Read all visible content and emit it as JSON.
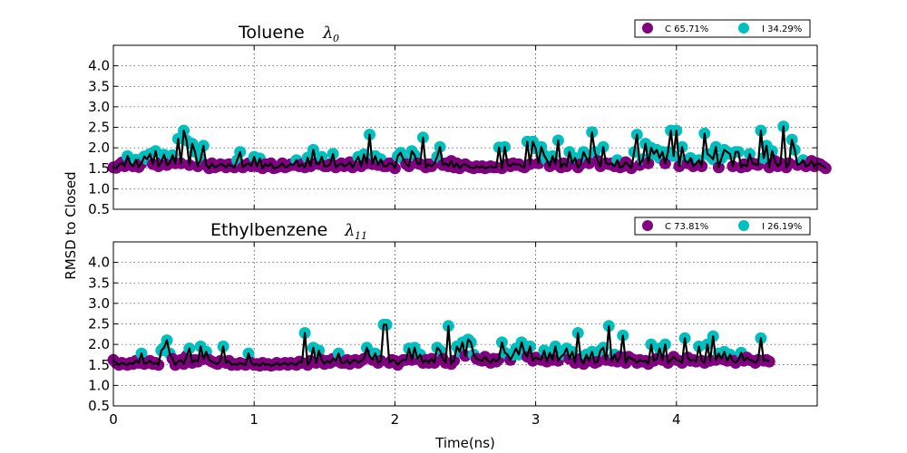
{
  "figure": {
    "ylabel": "RMSD to Closed",
    "xlabel": "Time(ns)"
  },
  "chart_data": [
    {
      "type": "scatter",
      "title": "Toluene",
      "title_symbol": "λ",
      "title_subscript": "0",
      "xlim": [
        0,
        5
      ],
      "ylim": [
        0.5,
        4.5
      ],
      "yticks": [
        "0.5",
        "1.0",
        "1.5",
        "2.0",
        "2.5",
        "3.0",
        "3.5",
        "4.0"
      ],
      "xticks": [],
      "grid": true,
      "legend_position": "top-right",
      "legend": [
        {
          "label": "C 65.71%",
          "color": "#800080"
        },
        {
          "label": "I 34.29%",
          "color": "#00BFBF"
        }
      ],
      "line_color": "#000000",
      "threshold": 1.7,
      "x_step": 0.02,
      "y": [
        1.52,
        1.51,
        1.58,
        1.64,
        1.55,
        1.8,
        1.62,
        1.55,
        1.71,
        1.53,
        1.62,
        1.79,
        1.72,
        1.85,
        1.6,
        1.92,
        1.55,
        1.65,
        1.83,
        1.58,
        1.62,
        1.82,
        1.62,
        2.22,
        1.62,
        2.42,
        2.18,
        1.58,
        2.1,
        1.9,
        1.55,
        1.72,
        2.05,
        1.58,
        1.5,
        1.62,
        1.52,
        1.55,
        1.6,
        1.58,
        1.52,
        1.6,
        1.55,
        1.52,
        1.7,
        1.9,
        1.52,
        1.58,
        1.62,
        1.55,
        1.78,
        1.55,
        1.74,
        1.5,
        1.6,
        1.55,
        1.62,
        1.5,
        1.52,
        1.55,
        1.62,
        1.52,
        1.55,
        1.6,
        1.58,
        1.7,
        1.55,
        1.6,
        1.52,
        1.76,
        1.55,
        1.95,
        1.62,
        1.6,
        1.78,
        1.55,
        1.55,
        1.6,
        1.85,
        1.52,
        1.58,
        1.62,
        1.55,
        1.58,
        1.65,
        1.52,
        1.65,
        1.78,
        1.55,
        1.84,
        1.62,
        2.32,
        1.6,
        1.8,
        1.58,
        1.72,
        1.55,
        1.55,
        1.62,
        1.62,
        1.5,
        1.8,
        1.88,
        1.72,
        1.6,
        1.55,
        1.92,
        1.82,
        1.62,
        1.6,
        2.25,
        1.52,
        1.6,
        1.55,
        1.62,
        1.78,
        2.02,
        1.58,
        1.62,
        1.55,
        1.68,
        1.52,
        1.62,
        1.5,
        1.58,
        1.6,
        1.55,
        1.52,
        1.5,
        1.55,
        1.52,
        1.55,
        1.5,
        1.52,
        1.55,
        1.52,
        1.52,
        2.01,
        1.5,
        2.02,
        1.6,
        1.55,
        1.62,
        1.58,
        1.6,
        1.55,
        1.52,
        2.15,
        1.6,
        2.15,
        1.98,
        1.62,
        2.02,
        1.82,
        1.7,
        1.55,
        1.8,
        1.6,
        2.18,
        1.52,
        1.62,
        1.55,
        1.9,
        1.62,
        1.75,
        1.52,
        1.6,
        1.9,
        1.75,
        1.62,
        2.38,
        1.9,
        1.68,
        1.55,
        2.02,
        1.62,
        1.6,
        1.62,
        1.55,
        1.7,
        1.52,
        1.55,
        1.65,
        1.58,
        1.5,
        1.9,
        2.32,
        1.58,
        1.72,
        2.1,
        1.62,
        2.0,
        1.85,
        1.95,
        1.75,
        1.9,
        1.62,
        1.9,
        2.42,
        1.8,
        2.42,
        1.55,
        2.02,
        1.7,
        1.62,
        1.75,
        1.55,
        1.62,
        1.7,
        1.55,
        2.35,
        1.85,
        1.8,
        1.72,
        2.02,
        1.52,
        1.75,
        1.95,
        1.9,
        1.85,
        1.55,
        1.9,
        1.9,
        1.52,
        1.6,
        1.55,
        1.85,
        1.62,
        1.6,
        1.58,
        2.42,
        1.75,
        2.05,
        1.52,
        1.92,
        1.68,
        1.55,
        1.62,
        2.52,
        1.52,
        1.62,
        2.2,
        1.95,
        1.58,
        1.62,
        1.7,
        1.55,
        1.58,
        1.68,
        1.55,
        1.62,
        1.6,
        1.55,
        1.5
      ]
    },
    {
      "type": "scatter",
      "title": "Ethylbenzene",
      "title_symbol": "λ",
      "title_subscript": "11",
      "xlim": [
        0,
        5
      ],
      "ylim": [
        0.5,
        4.5
      ],
      "yticks": [
        "0.5",
        "1.0",
        "1.5",
        "2.0",
        "2.5",
        "3.0",
        "3.5",
        "4.0"
      ],
      "xticks": [
        "0",
        "1",
        "2",
        "3",
        "4"
      ],
      "grid": true,
      "legend_position": "top-right",
      "legend": [
        {
          "label": "C 73.81%",
          "color": "#800080"
        },
        {
          "label": "I 26.19%",
          "color": "#00BFBF"
        }
      ],
      "line_color": "#000000",
      "threshold": 1.75,
      "x_step": 0.02,
      "y": [
        1.62,
        1.55,
        1.5,
        1.55,
        1.52,
        1.5,
        1.55,
        1.52,
        1.6,
        1.55,
        1.78,
        1.52,
        1.55,
        1.6,
        1.52,
        1.55,
        1.5,
        1.85,
        1.92,
        2.1,
        1.78,
        1.65,
        1.5,
        1.58,
        1.62,
        1.52,
        1.72,
        1.9,
        1.55,
        1.62,
        1.58,
        1.95,
        1.65,
        1.82,
        1.62,
        1.58,
        1.55,
        1.52,
        1.6,
        1.95,
        1.55,
        1.6,
        1.5,
        1.52,
        1.5,
        1.55,
        1.52,
        1.5,
        1.78,
        1.55,
        1.5,
        1.52,
        1.48,
        1.55,
        1.5,
        1.52,
        1.48,
        1.5,
        1.55,
        1.5,
        1.52,
        1.55,
        1.5,
        1.55,
        1.52,
        1.5,
        1.58,
        1.55,
        2.28,
        1.5,
        1.6,
        1.92,
        1.55,
        1.85,
        1.62,
        1.52,
        1.6,
        1.55,
        1.65,
        1.6,
        1.78,
        1.55,
        1.55,
        1.62,
        1.52,
        1.6,
        1.62,
        1.55,
        1.6,
        1.65,
        1.92,
        1.72,
        1.62,
        1.78,
        1.55,
        1.6,
        2.48,
        2.48,
        1.55,
        1.62,
        1.6,
        1.5,
        1.58,
        1.62,
        1.62,
        1.9,
        1.62,
        1.92,
        1.65,
        1.75,
        1.55,
        1.62,
        1.55,
        1.65,
        1.55,
        1.92,
        1.85,
        1.65,
        1.55,
        2.45,
        1.52,
        1.6,
        1.95,
        1.82,
        2.05,
        1.72,
        2.12,
        2.05,
        1.75,
        1.65,
        1.62,
        1.6,
        1.7,
        1.6,
        1.55,
        1.65,
        1.58,
        1.65,
        2.05,
        1.8,
        1.75,
        1.62,
        1.75,
        1.9,
        1.75,
        2.05,
        1.8,
        1.7,
        1.95,
        1.6,
        1.68,
        1.65,
        1.62,
        1.85,
        1.58,
        1.8,
        1.62,
        1.95,
        1.6,
        1.7,
        1.75,
        1.9,
        1.65,
        1.82,
        1.55,
        2.28,
        1.65,
        1.52,
        1.75,
        1.6,
        1.82,
        1.55,
        1.58,
        1.85,
        1.92,
        1.62,
        2.45,
        1.6,
        1.75,
        1.58,
        1.7,
        2.22,
        1.55,
        1.7,
        1.65,
        1.62,
        1.55,
        1.62,
        1.58,
        1.6,
        1.52,
        2.0,
        1.6,
        1.65,
        1.9,
        1.62,
        2.0,
        1.55,
        1.62,
        1.7,
        1.62,
        1.6,
        1.55,
        2.15,
        1.68,
        1.6,
        1.62,
        1.58,
        1.95,
        1.6,
        1.55,
        2.0,
        1.6,
        2.2,
        1.62,
        1.78,
        1.65,
        1.82,
        1.6,
        1.75,
        1.6,
        1.55,
        1.62,
        1.8,
        1.6,
        1.68,
        1.62,
        1.6,
        1.55,
        1.62,
        2.15,
        1.6,
        1.62,
        1.58
      ]
    }
  ]
}
